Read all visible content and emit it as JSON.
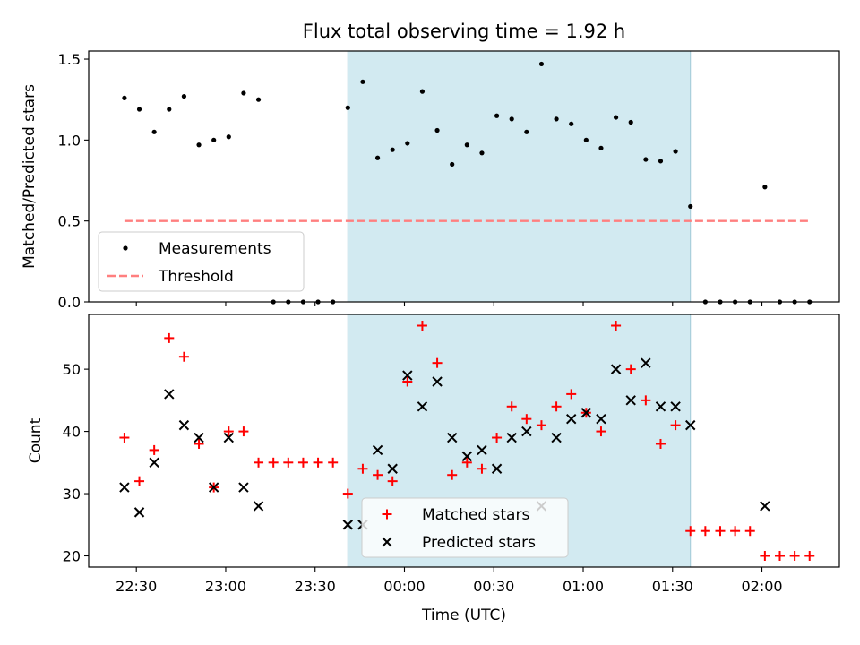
{
  "figure": {
    "title": "Flux total observing time = 1.92 h",
    "xlabel": "Time (UTC)",
    "x_ticks": [
      "22:30",
      "23:00",
      "23:30",
      "00:00",
      "00:30",
      "01:00",
      "01:30",
      "02:00"
    ]
  },
  "colors": {
    "measurements": "#000000",
    "threshold": "#ff7f7f",
    "matched": "#ff0000",
    "predicted": "#000000",
    "shade": "#add8e6"
  },
  "chart_data": [
    {
      "type": "scatter",
      "panel": "top",
      "ylabel": "Matched/Predicted stars",
      "xlim": [
        "22:14",
        "02:26"
      ],
      "ylim": [
        0,
        1.55
      ],
      "y_ticks": [
        "0.0",
        "0.5",
        "1.0",
        "1.5"
      ],
      "shaded_region": [
        "23:41",
        "01:36"
      ],
      "threshold": {
        "value": 0.5,
        "x_range": [
          "22:26",
          "02:16"
        ]
      },
      "legend": {
        "placement": "lower-left",
        "entries": [
          "Measurements",
          "Threshold"
        ]
      },
      "series": [
        {
          "name": "Measurements",
          "points": [
            [
              "22:26",
              1.26
            ],
            [
              "22:31",
              1.19
            ],
            [
              "22:36",
              1.05
            ],
            [
              "22:41",
              1.19
            ],
            [
              "22:46",
              1.27
            ],
            [
              "22:51",
              0.97
            ],
            [
              "22:56",
              1.0
            ],
            [
              "23:01",
              1.02
            ],
            [
              "23:06",
              1.29
            ],
            [
              "23:11",
              1.25
            ],
            [
              "23:16",
              0.0
            ],
            [
              "23:21",
              0.0
            ],
            [
              "23:26",
              0.0
            ],
            [
              "23:31",
              0.0
            ],
            [
              "23:36",
              0.0
            ],
            [
              "23:41",
              1.2
            ],
            [
              "23:46",
              1.36
            ],
            [
              "23:51",
              0.89
            ],
            [
              "23:56",
              0.94
            ],
            [
              "00:01",
              0.98
            ],
            [
              "00:06",
              1.3
            ],
            [
              "00:11",
              1.06
            ],
            [
              "00:16",
              0.85
            ],
            [
              "00:21",
              0.97
            ],
            [
              "00:26",
              0.92
            ],
            [
              "00:31",
              1.15
            ],
            [
              "00:36",
              1.13
            ],
            [
              "00:41",
              1.05
            ],
            [
              "00:46",
              1.47
            ],
            [
              "00:51",
              1.13
            ],
            [
              "00:56",
              1.1
            ],
            [
              "01:01",
              1.0
            ],
            [
              "01:06",
              0.95
            ],
            [
              "01:11",
              1.14
            ],
            [
              "01:16",
              1.11
            ],
            [
              "01:21",
              0.88
            ],
            [
              "01:26",
              0.87
            ],
            [
              "01:31",
              0.93
            ],
            [
              "01:36",
              0.59
            ],
            [
              "01:41",
              0.0
            ],
            [
              "01:46",
              0.0
            ],
            [
              "01:51",
              0.0
            ],
            [
              "01:56",
              0.0
            ],
            [
              "02:01",
              0.71
            ],
            [
              "02:06",
              0.0
            ],
            [
              "02:11",
              0.0
            ],
            [
              "02:16",
              0.0
            ]
          ]
        }
      ]
    },
    {
      "type": "scatter",
      "panel": "bottom",
      "ylabel": "Count",
      "xlim": [
        "22:14",
        "02:26"
      ],
      "ylim": [
        18.2,
        58.8
      ],
      "y_ticks": [
        "20",
        "30",
        "40",
        "50"
      ],
      "shaded_region": [
        "23:41",
        "01:36"
      ],
      "legend": {
        "placement": "lower-center",
        "entries": [
          "Matched stars",
          "Predicted stars"
        ]
      },
      "series": [
        {
          "name": "Matched stars",
          "marker": "plus",
          "points": [
            [
              "22:26",
              39
            ],
            [
              "22:31",
              32
            ],
            [
              "22:36",
              37
            ],
            [
              "22:41",
              55
            ],
            [
              "22:46",
              52
            ],
            [
              "22:51",
              38
            ],
            [
              "22:56",
              31
            ],
            [
              "23:01",
              40
            ],
            [
              "23:06",
              40
            ],
            [
              "23:11",
              35
            ],
            [
              "23:16",
              35
            ],
            [
              "23:21",
              35
            ],
            [
              "23:26",
              35
            ],
            [
              "23:31",
              35
            ],
            [
              "23:36",
              35
            ],
            [
              "23:41",
              30
            ],
            [
              "23:46",
              34
            ],
            [
              "23:51",
              33
            ],
            [
              "23:56",
              32
            ],
            [
              "00:01",
              48
            ],
            [
              "00:06",
              57
            ],
            [
              "00:11",
              51
            ],
            [
              "00:16",
              33
            ],
            [
              "00:21",
              35
            ],
            [
              "00:26",
              34
            ],
            [
              "00:31",
              39
            ],
            [
              "00:36",
              44
            ],
            [
              "00:41",
              42
            ],
            [
              "00:46",
              41
            ],
            [
              "00:51",
              44
            ],
            [
              "00:56",
              46
            ],
            [
              "01:01",
              43
            ],
            [
              "01:06",
              40
            ],
            [
              "01:11",
              57
            ],
            [
              "01:16",
              50
            ],
            [
              "01:21",
              45
            ],
            [
              "01:26",
              38
            ],
            [
              "01:31",
              41
            ],
            [
              "01:36",
              24
            ],
            [
              "01:41",
              24
            ],
            [
              "01:46",
              24
            ],
            [
              "01:51",
              24
            ],
            [
              "01:56",
              24
            ],
            [
              "02:01",
              20
            ],
            [
              "02:06",
              20
            ],
            [
              "02:11",
              20
            ],
            [
              "02:16",
              20
            ]
          ]
        },
        {
          "name": "Predicted stars",
          "marker": "x",
          "points": [
            [
              "22:26",
              31
            ],
            [
              "22:31",
              27
            ],
            [
              "22:36",
              35
            ],
            [
              "22:41",
              46
            ],
            [
              "22:46",
              41
            ],
            [
              "22:51",
              39
            ],
            [
              "22:56",
              31
            ],
            [
              "23:01",
              39
            ],
            [
              "23:06",
              31
            ],
            [
              "23:11",
              28
            ],
            [
              "23:41",
              25
            ],
            [
              "23:46",
              25
            ],
            [
              "23:51",
              37
            ],
            [
              "23:56",
              34
            ],
            [
              "00:01",
              49
            ],
            [
              "00:06",
              44
            ],
            [
              "00:11",
              48
            ],
            [
              "00:16",
              39
            ],
            [
              "00:21",
              36
            ],
            [
              "00:26",
              37
            ],
            [
              "00:31",
              34
            ],
            [
              "00:36",
              39
            ],
            [
              "00:41",
              40
            ],
            [
              "00:46",
              28
            ],
            [
              "00:51",
              39
            ],
            [
              "00:56",
              42
            ],
            [
              "01:01",
              43
            ],
            [
              "01:06",
              42
            ],
            [
              "01:11",
              50
            ],
            [
              "01:16",
              45
            ],
            [
              "01:21",
              51
            ],
            [
              "01:26",
              44
            ],
            [
              "01:31",
              44
            ],
            [
              "01:36",
              41
            ],
            [
              "02:01",
              28
            ]
          ]
        }
      ]
    }
  ]
}
